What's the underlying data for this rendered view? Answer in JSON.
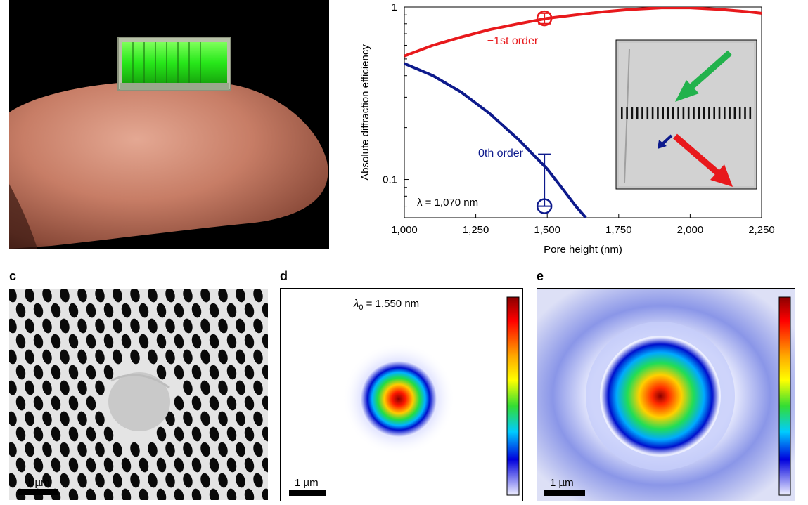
{
  "panels": {
    "c_label": "c",
    "d_label": "d",
    "e_label": "e"
  },
  "colors": {
    "minus_first_order": "#e8191c",
    "zeroth_order": "#0d1a8c",
    "photo_background": "#000000",
    "chip_glow": "#2dff1e"
  },
  "chart_data": {
    "type": "line",
    "xlabel": "Pore height (nm)",
    "ylabel": "Absolute diffraction efficiency",
    "xlim": [
      1000,
      2250
    ],
    "ylim": [
      0.06,
      1
    ],
    "yscale": "log",
    "xticks": [
      1000,
      1250,
      1500,
      1750,
      2000,
      2250
    ],
    "xtick_labels": [
      "1,000",
      "1,250",
      "1,500",
      "1,750",
      "2,000",
      "2,250"
    ],
    "yticks": [
      0.1,
      1
    ],
    "ytick_labels": [
      "0.1",
      "1"
    ],
    "annotation": "λ = 1,070 nm",
    "series": [
      {
        "name": "−1st order",
        "color": "#e8191c",
        "x": [
          1000,
          1100,
          1200,
          1300,
          1400,
          1500,
          1600,
          1700,
          1800,
          1900,
          2000,
          2100,
          2200,
          2250
        ],
        "y": [
          0.52,
          0.6,
          0.67,
          0.74,
          0.8,
          0.86,
          0.9,
          0.94,
          0.97,
          0.99,
          0.99,
          0.97,
          0.94,
          0.92
        ]
      },
      {
        "name": "0th order",
        "color": "#0d1a8c",
        "x": [
          1000,
          1100,
          1200,
          1300,
          1400,
          1500,
          1550,
          1600,
          1635
        ],
        "y": [
          0.47,
          0.4,
          0.32,
          0.24,
          0.17,
          0.115,
          0.09,
          0.07,
          0.06
        ]
      }
    ],
    "measurements": [
      {
        "series": "−1st order",
        "x": 1490,
        "y": 0.86,
        "err_low": 0.8,
        "err_high": 0.92
      },
      {
        "series": "0th order",
        "x": 1490,
        "y": 0.07,
        "err_low": 0.07,
        "err_high": 0.14
      }
    ]
  },
  "panel_d": {
    "annotation": "λ0 = 1,550 nm",
    "lambda_symbol": "λ",
    "lambda_sub": "0",
    "lambda_rest": " = 1,550 nm",
    "scale_bar": "1 µm"
  },
  "panel_c": {
    "scale_bar": "1 µm"
  },
  "panel_e": {
    "scale_bar": "1 µm"
  }
}
